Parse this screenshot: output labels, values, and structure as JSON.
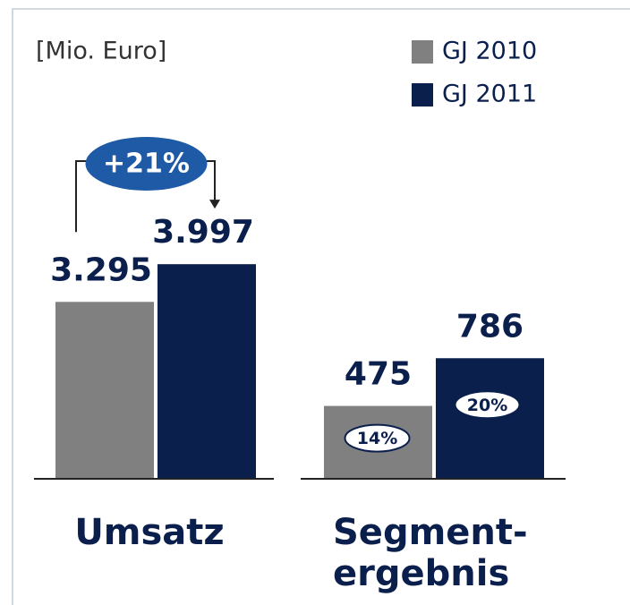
{
  "chart_data": {
    "type": "bar",
    "unit_label": "[Mio. Euro]",
    "categories": [
      "Umsatz",
      "Segment-\nergebnis"
    ],
    "series": [
      {
        "name": "GJ 2010",
        "color": "#808080",
        "values": [
          3295,
          475
        ],
        "value_labels": [
          "3.295",
          "475"
        ]
      },
      {
        "name": "GJ 2011",
        "color": "#0b1f4d",
        "values": [
          3997,
          786
        ],
        "value_labels": [
          "3.997",
          "786"
        ]
      }
    ],
    "ylims": [
      [
        0,
        4000
      ],
      [
        0,
        1400
      ]
    ],
    "growth_annotation": "+21%",
    "margin_annotations": [
      [
        "14%",
        "20%"
      ]
    ]
  }
}
